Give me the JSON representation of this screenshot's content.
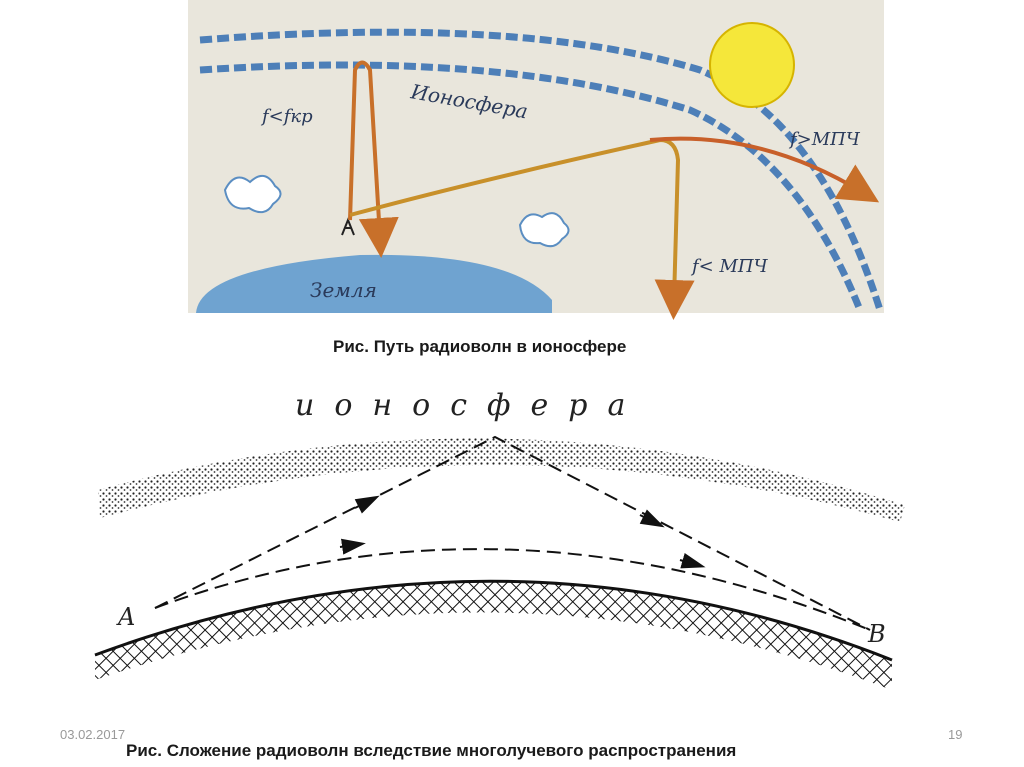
{
  "slide": {
    "figure1": {
      "labels": {
        "ionosphere": "Ионосфера",
        "f_less_fkr": "f<fкр",
        "f_greater_mpch": "f>МПЧ",
        "f_less_mpch": "f< МПЧ",
        "earth": "Земля"
      },
      "caption": "Рис.  Путь радиоволн в ионосфере"
    },
    "figure2": {
      "ionosphere": "ионосфера",
      "point_a": "A",
      "point_b": "B",
      "caption": "Рис. Сложение радиоволн вследствие многолучевого распространения"
    },
    "footer": {
      "date": "03.02.2017",
      "page": "19"
    }
  }
}
